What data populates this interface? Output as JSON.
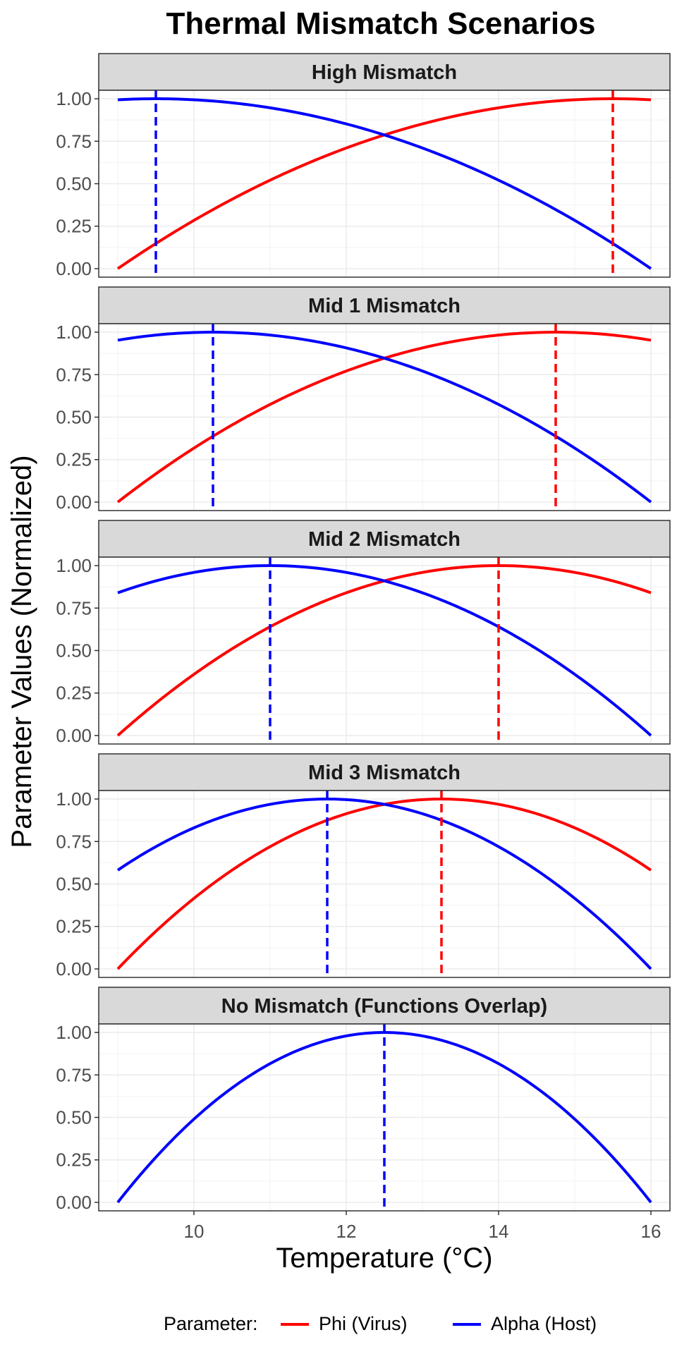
{
  "chart_data": {
    "type": "line",
    "title": "Thermal Mismatch Scenarios",
    "xlabel": "Temperature (°C)",
    "ylabel": "Parameter Values (Normalized)",
    "xlim": [
      8.75,
      16.25
    ],
    "ylim": [
      -0.05,
      1.05
    ],
    "x_ticks": [
      10,
      12,
      14,
      16
    ],
    "y_ticks": [
      0,
      0.25,
      0.5,
      0.75,
      1
    ],
    "y_tick_labels": [
      "0.00",
      "0.25",
      "0.50",
      "0.75",
      "1.00"
    ],
    "grid": true,
    "legend": {
      "position": "bottom",
      "title": "Parameter:",
      "entries": [
        {
          "name": "Phi (Virus)",
          "color": "#ff0000"
        },
        {
          "name": "Alpha (Host)",
          "color": "#0000ff"
        }
      ]
    },
    "x_range": [
      9,
      16
    ],
    "panels": [
      {
        "label": "High Mismatch",
        "phi_opt": 15.5,
        "alpha_opt": 9.5,
        "show_phi": true
      },
      {
        "label": "Mid 1 Mismatch",
        "phi_opt": 14.75,
        "alpha_opt": 10.25,
        "show_phi": true
      },
      {
        "label": "Mid 2 Mismatch",
        "phi_opt": 14.0,
        "alpha_opt": 11.0,
        "show_phi": true
      },
      {
        "label": "Mid 3 Mismatch",
        "phi_opt": 13.25,
        "alpha_opt": 11.75,
        "show_phi": true
      },
      {
        "label": "No Mismatch (Functions Overlap)",
        "phi_opt": 12.5,
        "alpha_opt": 12.5,
        "show_phi": false
      }
    ]
  }
}
